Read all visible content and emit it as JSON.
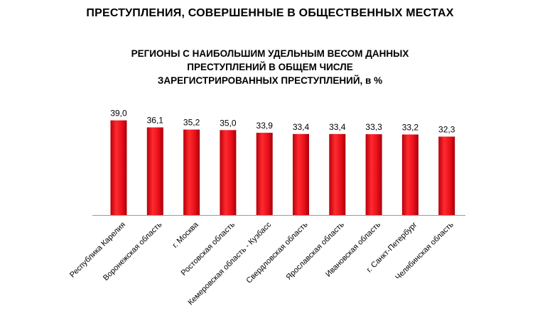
{
  "page_title": "ПРЕСТУПЛЕНИЯ, СОВЕРШЕННЫЕ В ОБЩЕСТВЕННЫХ МЕСТАХ",
  "chart_data": {
    "type": "bar",
    "title_lines": [
      "РЕГИОНЫ С НАИБОЛЬШИМ УДЕЛЬНЫМ ВЕСОМ ДАННЫХ",
      "ПРЕСТУПЛЕНИЙ В ОБЩЕМ ЧИСЛЕ",
      "ЗАРЕГИСТРИРОВАННЫХ ПРЕСТУПЛЕНИЙ, в %"
    ],
    "categories": [
      "Республика Карелия",
      "Воронежская область",
      "г. Москва",
      "Ростовская область",
      "Кемеровская область - Кузбасс",
      "Свердловская область",
      "Ярославская область",
      "Ивановская область",
      "г. Санкт-Петербург",
      "Челябинская область"
    ],
    "values": [
      39.0,
      36.1,
      35.2,
      35.0,
      33.9,
      33.4,
      33.4,
      33.3,
      33.2,
      32.3
    ],
    "value_labels": [
      "39,0",
      "36,1",
      "35,2",
      "35,0",
      "33,9",
      "33,4",
      "33,4",
      "33,3",
      "33,2",
      "32,3"
    ],
    "bar_color": "#e8101a",
    "grid": false,
    "legend": "none"
  }
}
